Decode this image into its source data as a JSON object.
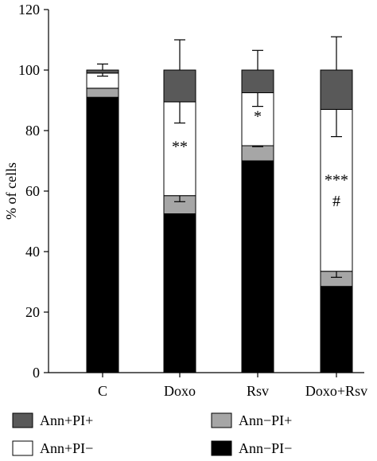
{
  "chart_data": {
    "type": "bar",
    "stacked": true,
    "title": "",
    "xlabel": "",
    "ylabel": "% of cells",
    "ylim": [
      0,
      120
    ],
    "yticks": [
      "0",
      "20",
      "40",
      "60",
      "80",
      "100",
      "120"
    ],
    "grid": false,
    "legend_position": "bottom",
    "categories": [
      "C",
      "Doxo",
      "Rsv",
      "Doxo+Rsv"
    ],
    "series": [
      {
        "name": "Ann−PI−",
        "color": "#000000",
        "values": [
          91,
          52.5,
          70,
          28.5
        ]
      },
      {
        "name": "Ann−PI+",
        "color": "#a6a6a6",
        "values": [
          3,
          6,
          5,
          5
        ]
      },
      {
        "name": "Ann+PI−",
        "color": "#ffffff",
        "values": [
          5,
          31,
          17.5,
          53.5
        ]
      },
      {
        "name": "Ann+PI+",
        "color": "#595959",
        "values": [
          1,
          10.5,
          7.5,
          13
        ]
      }
    ],
    "error_bars": [
      {
        "category": "C",
        "segment": "Ann−PI−",
        "direction": "down",
        "value": 3.5
      },
      {
        "category": "C",
        "segment": "Ann+PI−",
        "direction": "down",
        "value": 1
      },
      {
        "category": "C",
        "segment": "Ann+PI+",
        "direction": "up",
        "value": 2
      },
      {
        "category": "Doxo",
        "segment": "Ann−PI−",
        "direction": "down",
        "value": 6
      },
      {
        "category": "Doxo",
        "segment": "Ann−PI+",
        "direction": "down",
        "value": 2
      },
      {
        "category": "Doxo",
        "segment": "Ann+PI−",
        "direction": "down",
        "value": 7
      },
      {
        "category": "Doxo",
        "segment": "Ann+PI+",
        "direction": "up",
        "value": 10
      },
      {
        "category": "Rsv",
        "segment": "Ann−PI−",
        "direction": "down",
        "value": 7.5
      },
      {
        "category": "Rsv",
        "segment": "Ann−PI+",
        "direction": "down",
        "value": 0.3
      },
      {
        "category": "Rsv",
        "segment": "Ann+PI−",
        "direction": "down",
        "value": 4.5
      },
      {
        "category": "Rsv",
        "segment": "Ann+PI+",
        "direction": "up",
        "value": 6.5
      },
      {
        "category": "Doxo+Rsv",
        "segment": "Ann−PI−",
        "direction": "down",
        "value": 6
      },
      {
        "category": "Doxo+Rsv",
        "segment": "Ann−PI+",
        "direction": "down",
        "value": 2
      },
      {
        "category": "Doxo+Rsv",
        "segment": "Ann+PI−",
        "direction": "down",
        "value": 9
      },
      {
        "category": "Doxo+Rsv",
        "segment": "Ann+PI+",
        "direction": "up",
        "value": 11
      }
    ],
    "annotations": [
      {
        "category": "Doxo",
        "text": "**",
        "y": 73
      },
      {
        "category": "Rsv",
        "text": "*",
        "y": 83
      },
      {
        "category": "Doxo+Rsv",
        "text": "***",
        "y": 62
      },
      {
        "category": "Doxo+Rsv",
        "text": "#",
        "y": 55
      }
    ],
    "legend": [
      {
        "label": "Ann+PI+",
        "color": "#595959"
      },
      {
        "label": "Ann−PI+",
        "color": "#a6a6a6"
      },
      {
        "label": "Ann+PI−",
        "color": "#ffffff"
      },
      {
        "label": "Ann−PI−",
        "color": "#000000"
      }
    ]
  }
}
